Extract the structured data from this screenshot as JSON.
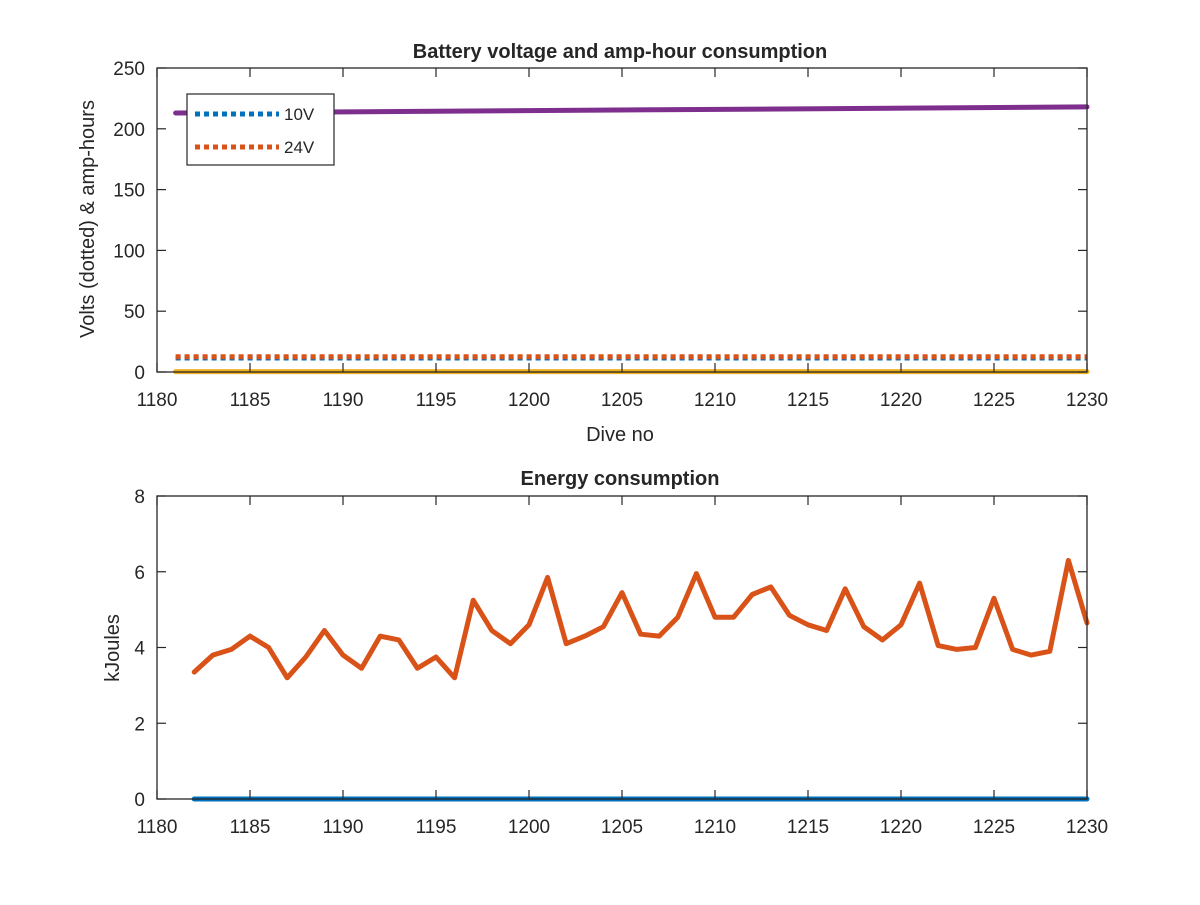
{
  "colors": {
    "blue": "#0072BD",
    "orange": "#D95319",
    "yellow": "#EDB120",
    "purple": "#7E2F8E",
    "axis": "#262626"
  },
  "chart_data": [
    {
      "type": "line",
      "title": "Battery voltage and amp-hour consumption",
      "xlabel": "Dive no",
      "ylabel": "Volts (dotted) & amp-hours",
      "xlim": [
        1180,
        1230
      ],
      "ylim": [
        0,
        250
      ],
      "xticks": [
        "1180",
        "1185",
        "1190",
        "1195",
        "1200",
        "1205",
        "1210",
        "1215",
        "1220",
        "1225",
        "1230"
      ],
      "yticks": [
        "0",
        "50",
        "100",
        "150",
        "200",
        "250"
      ],
      "grid": false,
      "legend_position": "top-left",
      "series": [
        {
          "name": "10V",
          "color": "#0072BD",
          "style": "dotted",
          "x": [
            1181,
            1230
          ],
          "values": [
            11.5,
            11.5
          ]
        },
        {
          "name": "24V",
          "color": "#D95319",
          "style": "dotted",
          "x": [
            1181,
            1230
          ],
          "values": [
            12.5,
            12.5
          ]
        },
        {
          "color": "#EDB120",
          "style": "solid",
          "x": [
            1181,
            1230
          ],
          "values": [
            0.3,
            0.3
          ]
        },
        {
          "color": "#7E2F8E",
          "style": "solid",
          "x": [
            1181,
            1230
          ],
          "values": [
            213,
            218
          ]
        }
      ]
    },
    {
      "type": "line",
      "title": "Energy consumption",
      "xlabel": "",
      "ylabel": "kJoules",
      "xlim": [
        1180,
        1230
      ],
      "ylim": [
        0,
        8
      ],
      "xticks": [
        "1180",
        "1185",
        "1190",
        "1195",
        "1200",
        "1205",
        "1210",
        "1215",
        "1220",
        "1225",
        "1230"
      ],
      "yticks": [
        "0",
        "2",
        "4",
        "6",
        "8"
      ],
      "grid": false,
      "series": [
        {
          "color": "#0072BD",
          "style": "solid",
          "x": [
            1182,
            1230
          ],
          "values": [
            0.0,
            0.0
          ]
        },
        {
          "color": "#D95319",
          "style": "solid",
          "x": [
            1182,
            1183,
            1184,
            1185,
            1186,
            1187,
            1188,
            1189,
            1190,
            1191,
            1192,
            1193,
            1194,
            1195,
            1196,
            1197,
            1198,
            1199,
            1200,
            1201,
            1202,
            1203,
            1204,
            1205,
            1206,
            1207,
            1208,
            1209,
            1210,
            1211,
            1212,
            1213,
            1214,
            1215,
            1216,
            1217,
            1218,
            1219,
            1220,
            1221,
            1222,
            1223,
            1224,
            1225,
            1226,
            1227,
            1228,
            1229,
            1230
          ],
          "values": [
            3.35,
            3.8,
            3.95,
            4.3,
            4.0,
            3.2,
            3.75,
            4.45,
            3.8,
            3.45,
            4.3,
            4.2,
            3.45,
            3.75,
            3.2,
            5.25,
            4.45,
            4.1,
            4.6,
            5.85,
            4.1,
            4.3,
            4.55,
            5.45,
            4.35,
            4.3,
            4.8,
            5.95,
            4.8,
            4.8,
            5.4,
            5.6,
            4.85,
            4.6,
            4.45,
            5.55,
            4.55,
            4.2,
            4.6,
            5.7,
            4.05,
            3.95,
            4.0,
            5.3,
            3.95,
            3.8,
            3.9,
            6.3,
            4.65
          ]
        }
      ]
    }
  ]
}
